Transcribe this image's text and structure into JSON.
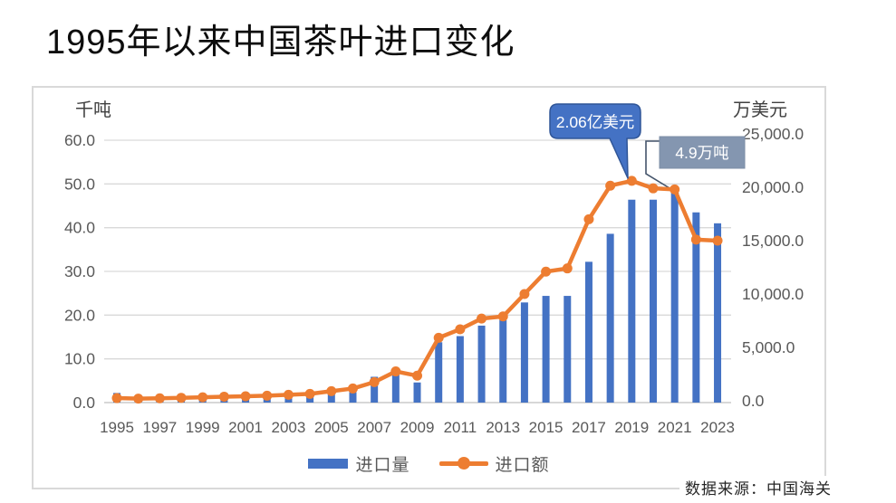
{
  "page": {
    "title": "1995年以来中国茶叶进口变化",
    "source_note": "数据来源：中国海关"
  },
  "chart_data": {
    "type": "bar",
    "subtype": "combo-bar-line-dual-axis",
    "grid": true,
    "categories": [
      1995,
      1996,
      1997,
      1998,
      1999,
      2000,
      2001,
      2002,
      2003,
      2004,
      2005,
      2006,
      2007,
      2008,
      2009,
      2010,
      2011,
      2012,
      2013,
      2014,
      2015,
      2016,
      2017,
      2018,
      2019,
      2020,
      2021,
      2022,
      2023
    ],
    "x_axis_tick_labels": [
      "1995",
      "1997",
      "1999",
      "2001",
      "2003",
      "2005",
      "2007",
      "2009",
      "2011",
      "2013",
      "2015",
      "2017",
      "2019",
      "2021",
      "2023"
    ],
    "left_axis": {
      "title": "千吨",
      "min": 0,
      "max": 60,
      "tick_step": 10,
      "tick_labels": [
        "0.0",
        "10.0",
        "20.0",
        "30.0",
        "40.0",
        "50.0",
        "60.0"
      ]
    },
    "right_axis": {
      "title": "万美元",
      "min": 0,
      "max": 25000,
      "tick_step": 5000,
      "tick_labels": [
        "0.0",
        "5,000.0",
        "10,000.0",
        "15,000.0",
        "20,000.0",
        "25,000.0"
      ]
    },
    "series": [
      {
        "name": "进口量",
        "type": "bar",
        "axis": "left",
        "unit": "千吨",
        "color": "#4472C4",
        "values": [
          2.2,
          1.4,
          0.9,
          0.9,
          1.1,
          2.2,
          1.0,
          1.2,
          2.2,
          1.5,
          1.9,
          2.4,
          5.9,
          6.9,
          4.6,
          13.8,
          15.2,
          17.6,
          18.9,
          22.9,
          24.4,
          24.4,
          32.2,
          38.6,
          46.4,
          46.4,
          49.0,
          43.5,
          41.0
        ]
      },
      {
        "name": "进口额",
        "type": "line",
        "axis": "right",
        "unit": "万美元",
        "color": "#ED7D31",
        "values": [
          250,
          200,
          230,
          280,
          330,
          380,
          420,
          480,
          560,
          650,
          900,
          1150,
          1750,
          2750,
          2350,
          5900,
          6700,
          7700,
          7900,
          10000,
          12100,
          12400,
          17000,
          20150,
          20600,
          19900,
          19800,
          15100,
          15000
        ]
      }
    ],
    "annotations": [
      {
        "text": "2.06亿美元",
        "shape": "speech-bubble",
        "fill": "#4472C4",
        "border": "#2F5597",
        "text_color": "#FFFFFF",
        "target_year": 2019,
        "target_series": "进口额"
      },
      {
        "text": "4.9万吨",
        "shape": "box-with-elbow-line",
        "fill": "#8496B0",
        "border": "#7C8DA6",
        "line_color": "#44546A",
        "text_color": "#FFFFFF",
        "target_year": 2021,
        "target_series": "进口量"
      }
    ],
    "legend": {
      "position": "bottom",
      "items": [
        "进口量",
        "进口额"
      ]
    }
  }
}
